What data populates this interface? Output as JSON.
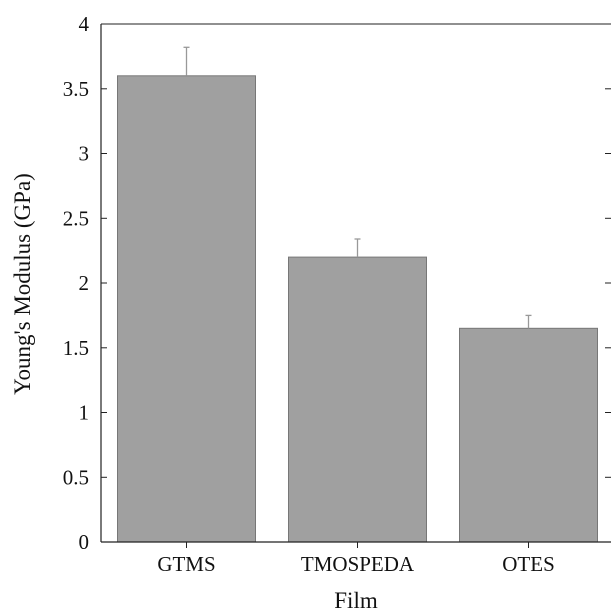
{
  "chart_data": {
    "type": "bar",
    "title": "",
    "xlabel": "Film",
    "ylabel": "Young's Modulus (GPa)",
    "categories": [
      "GTMS",
      "TMOSPEDA",
      "OTES"
    ],
    "values": [
      3.6,
      2.2,
      1.65
    ],
    "error_bars": [
      0.22,
      0.14,
      0.1
    ],
    "ylim": [
      0,
      4
    ],
    "yticks": [
      0,
      0.5,
      1,
      1.5,
      2,
      2.5,
      3,
      3.5,
      4
    ],
    "ytick_labels": [
      "0",
      "0.5",
      "1",
      "1.5",
      "2",
      "2.5",
      "3",
      "3.5",
      "4"
    ],
    "grid": false,
    "legend": "none",
    "bar_color": "#a0a0a0",
    "bar_edge_color": "#777777",
    "errorbar_color": "#999999",
    "axis_color": "#222222"
  }
}
